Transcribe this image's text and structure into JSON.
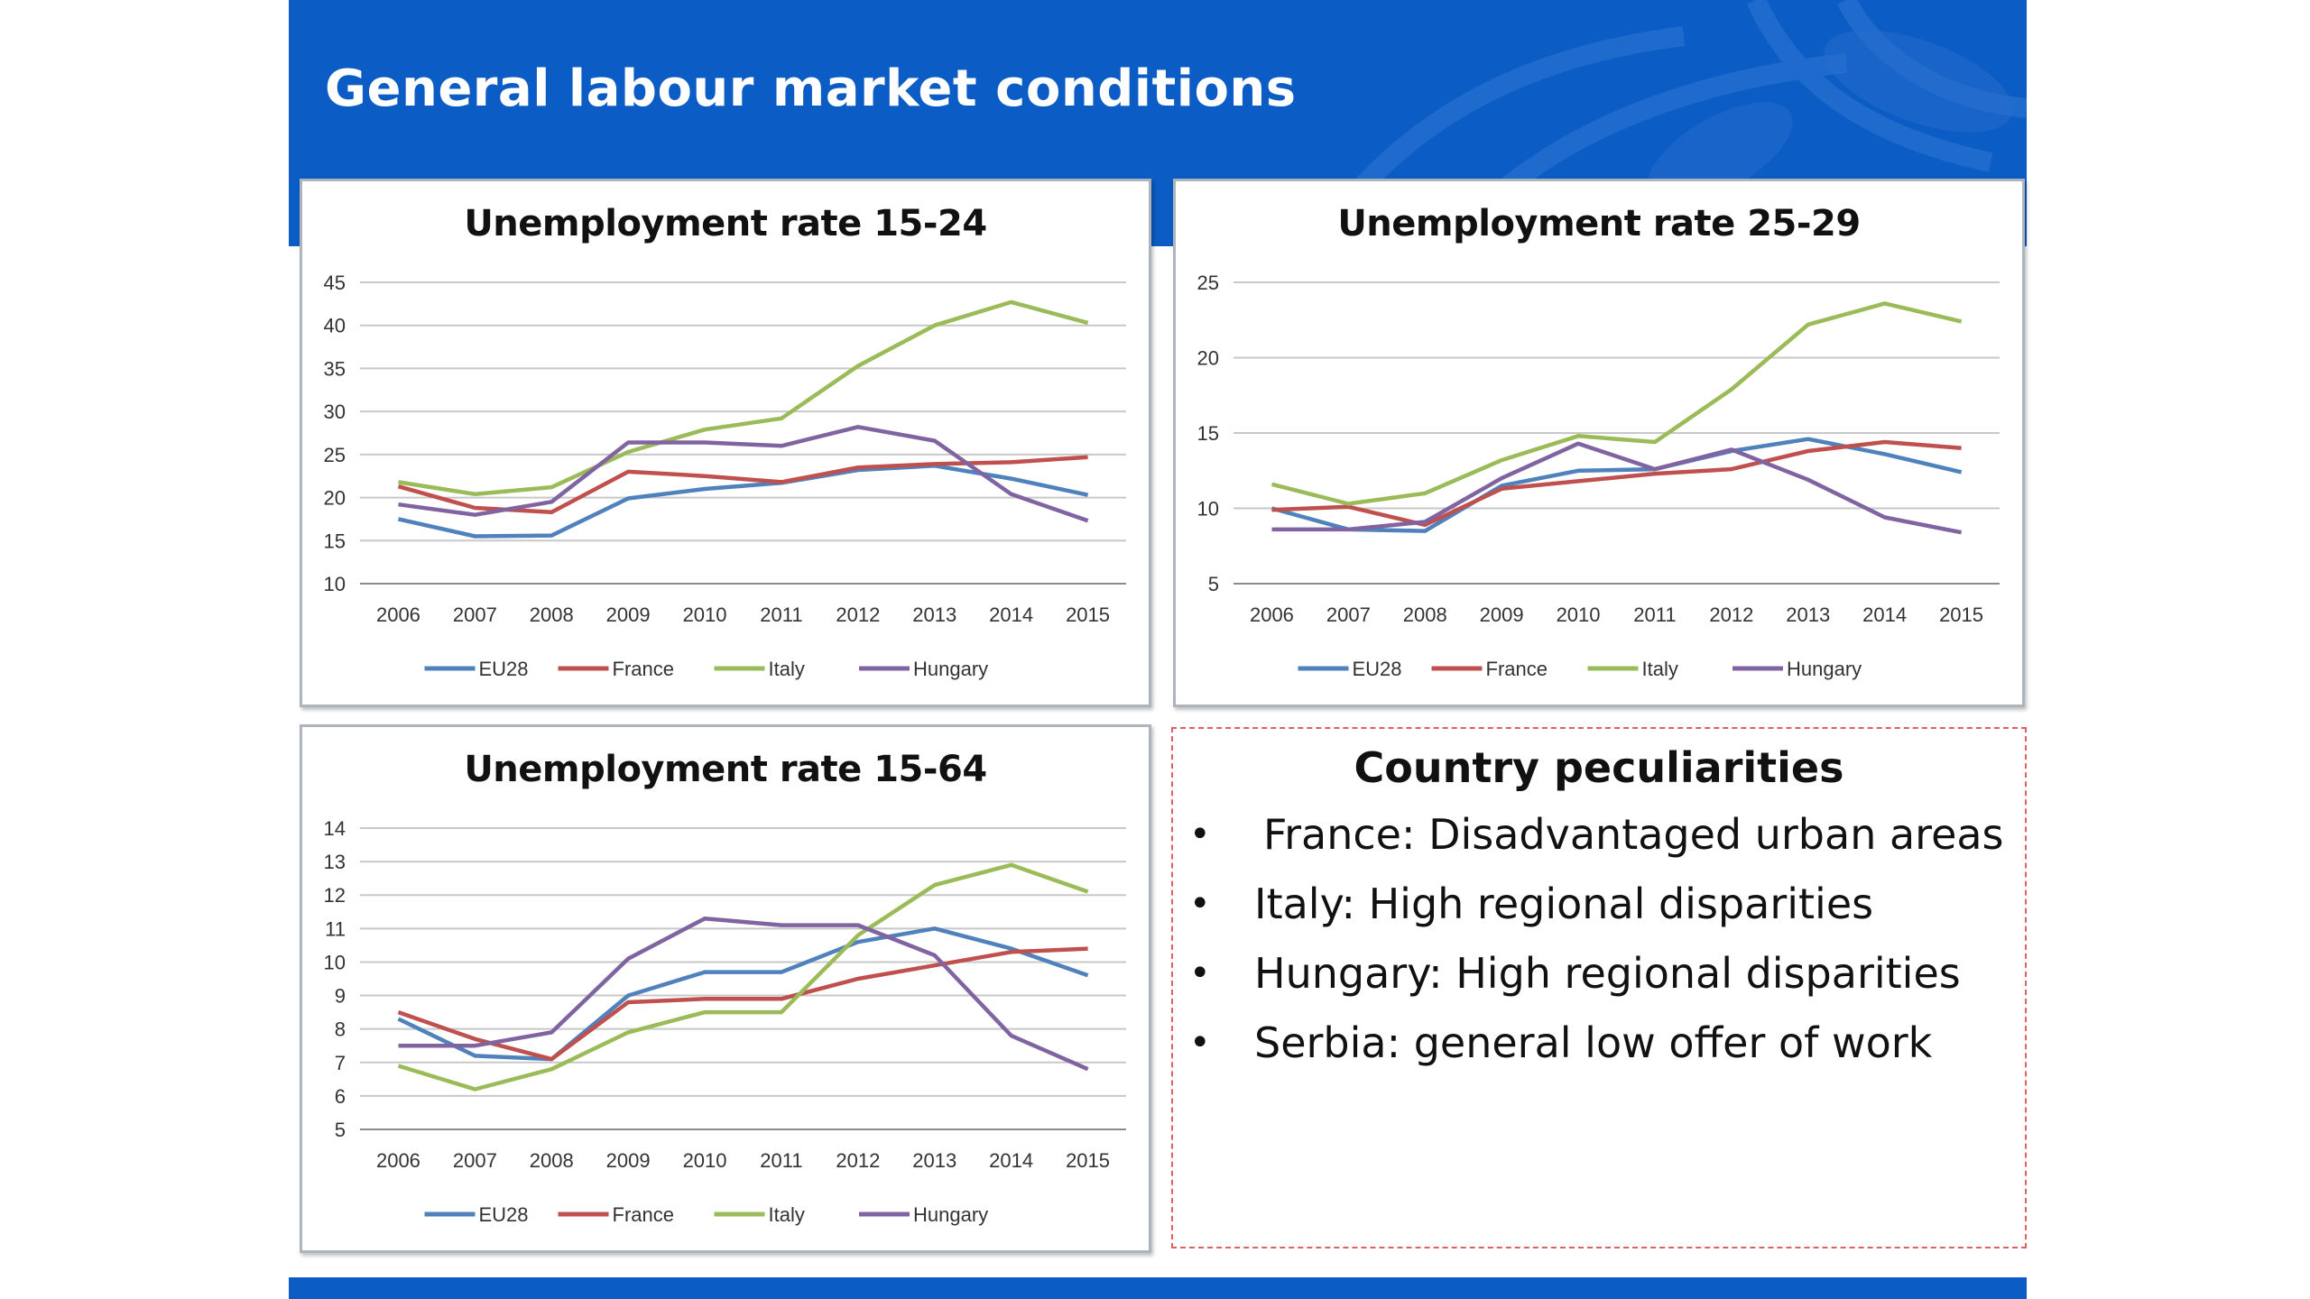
{
  "slide": {
    "title": "General labour market conditions"
  },
  "colors": {
    "header": "#0b5cc4",
    "EU28": "#4f81bd",
    "France": "#c0504d",
    "Italy": "#9bbb59",
    "Hungary": "#8064a2"
  },
  "chart_data": [
    {
      "type": "line",
      "title": "Unemployment rate 15-24",
      "categories": [
        "2006",
        "2007",
        "2008",
        "2009",
        "2010",
        "2011",
        "2012",
        "2013",
        "2014",
        "2015"
      ],
      "ylim": [
        10,
        45
      ],
      "yticks": [
        10,
        15,
        20,
        25,
        30,
        35,
        40,
        45
      ],
      "grid": true,
      "legend": "bottom",
      "series": [
        {
          "name": "EU28",
          "values": [
            17.5,
            15.5,
            15.6,
            19.9,
            21.0,
            21.7,
            23.2,
            23.7,
            22.2,
            20.3
          ]
        },
        {
          "name": "France",
          "values": [
            21.3,
            18.8,
            18.3,
            23.0,
            22.5,
            21.8,
            23.5,
            23.9,
            24.1,
            24.7
          ]
        },
        {
          "name": "Italy",
          "values": [
            21.8,
            20.4,
            21.2,
            25.3,
            27.9,
            29.2,
            35.3,
            40.0,
            42.7,
            40.3
          ]
        },
        {
          "name": "Hungary",
          "values": [
            19.2,
            18.0,
            19.5,
            26.4,
            26.4,
            26.0,
            28.2,
            26.6,
            20.4,
            17.3
          ]
        }
      ]
    },
    {
      "type": "line",
      "title": "Unemployment rate 25-29",
      "categories": [
        "2006",
        "2007",
        "2008",
        "2009",
        "2010",
        "2011",
        "2012",
        "2013",
        "2014",
        "2015"
      ],
      "ylim": [
        5,
        25
      ],
      "yticks": [
        5,
        10,
        15,
        20,
        25
      ],
      "grid": true,
      "legend": "bottom",
      "series": [
        {
          "name": "EU28",
          "values": [
            10.0,
            8.6,
            8.5,
            11.5,
            12.5,
            12.6,
            13.8,
            14.6,
            13.6,
            12.4
          ]
        },
        {
          "name": "France",
          "values": [
            9.9,
            10.1,
            8.9,
            11.3,
            11.8,
            12.3,
            12.6,
            13.8,
            14.4,
            14.0
          ]
        },
        {
          "name": "Italy",
          "values": [
            11.6,
            10.3,
            11.0,
            13.2,
            14.8,
            14.4,
            17.9,
            22.2,
            23.6,
            22.4
          ]
        },
        {
          "name": "Hungary",
          "values": [
            8.6,
            8.6,
            9.1,
            12.0,
            14.3,
            12.6,
            13.9,
            11.9,
            9.4,
            8.4
          ]
        }
      ]
    },
    {
      "type": "line",
      "title": "Unemployment rate 15-64",
      "categories": [
        "2006",
        "2007",
        "2008",
        "2009",
        "2010",
        "2011",
        "2012",
        "2013",
        "2014",
        "2015"
      ],
      "ylim": [
        5,
        14
      ],
      "yticks": [
        5,
        6,
        7,
        8,
        9,
        10,
        11,
        12,
        13,
        14
      ],
      "grid": true,
      "legend": "bottom",
      "series": [
        {
          "name": "EU28",
          "values": [
            8.3,
            7.2,
            7.1,
            9.0,
            9.7,
            9.7,
            10.6,
            11.0,
            10.4,
            9.6
          ]
        },
        {
          "name": "France",
          "values": [
            8.5,
            7.7,
            7.1,
            8.8,
            8.9,
            8.9,
            9.5,
            9.9,
            10.3,
            10.4
          ]
        },
        {
          "name": "Italy",
          "values": [
            6.9,
            6.2,
            6.8,
            7.9,
            8.5,
            8.5,
            10.8,
            12.3,
            12.9,
            12.1
          ]
        },
        {
          "name": "Hungary",
          "values": [
            7.5,
            7.5,
            7.9,
            10.1,
            11.3,
            11.1,
            11.1,
            10.2,
            7.8,
            6.8
          ]
        }
      ]
    }
  ],
  "info": {
    "title": "Country peculiarities",
    "bullet": "•",
    "items": [
      "France: Disadvantaged urban areas",
      "Italy: High regional disparities",
      "Hungary: High regional disparities",
      "Serbia: general low offer of work"
    ]
  }
}
